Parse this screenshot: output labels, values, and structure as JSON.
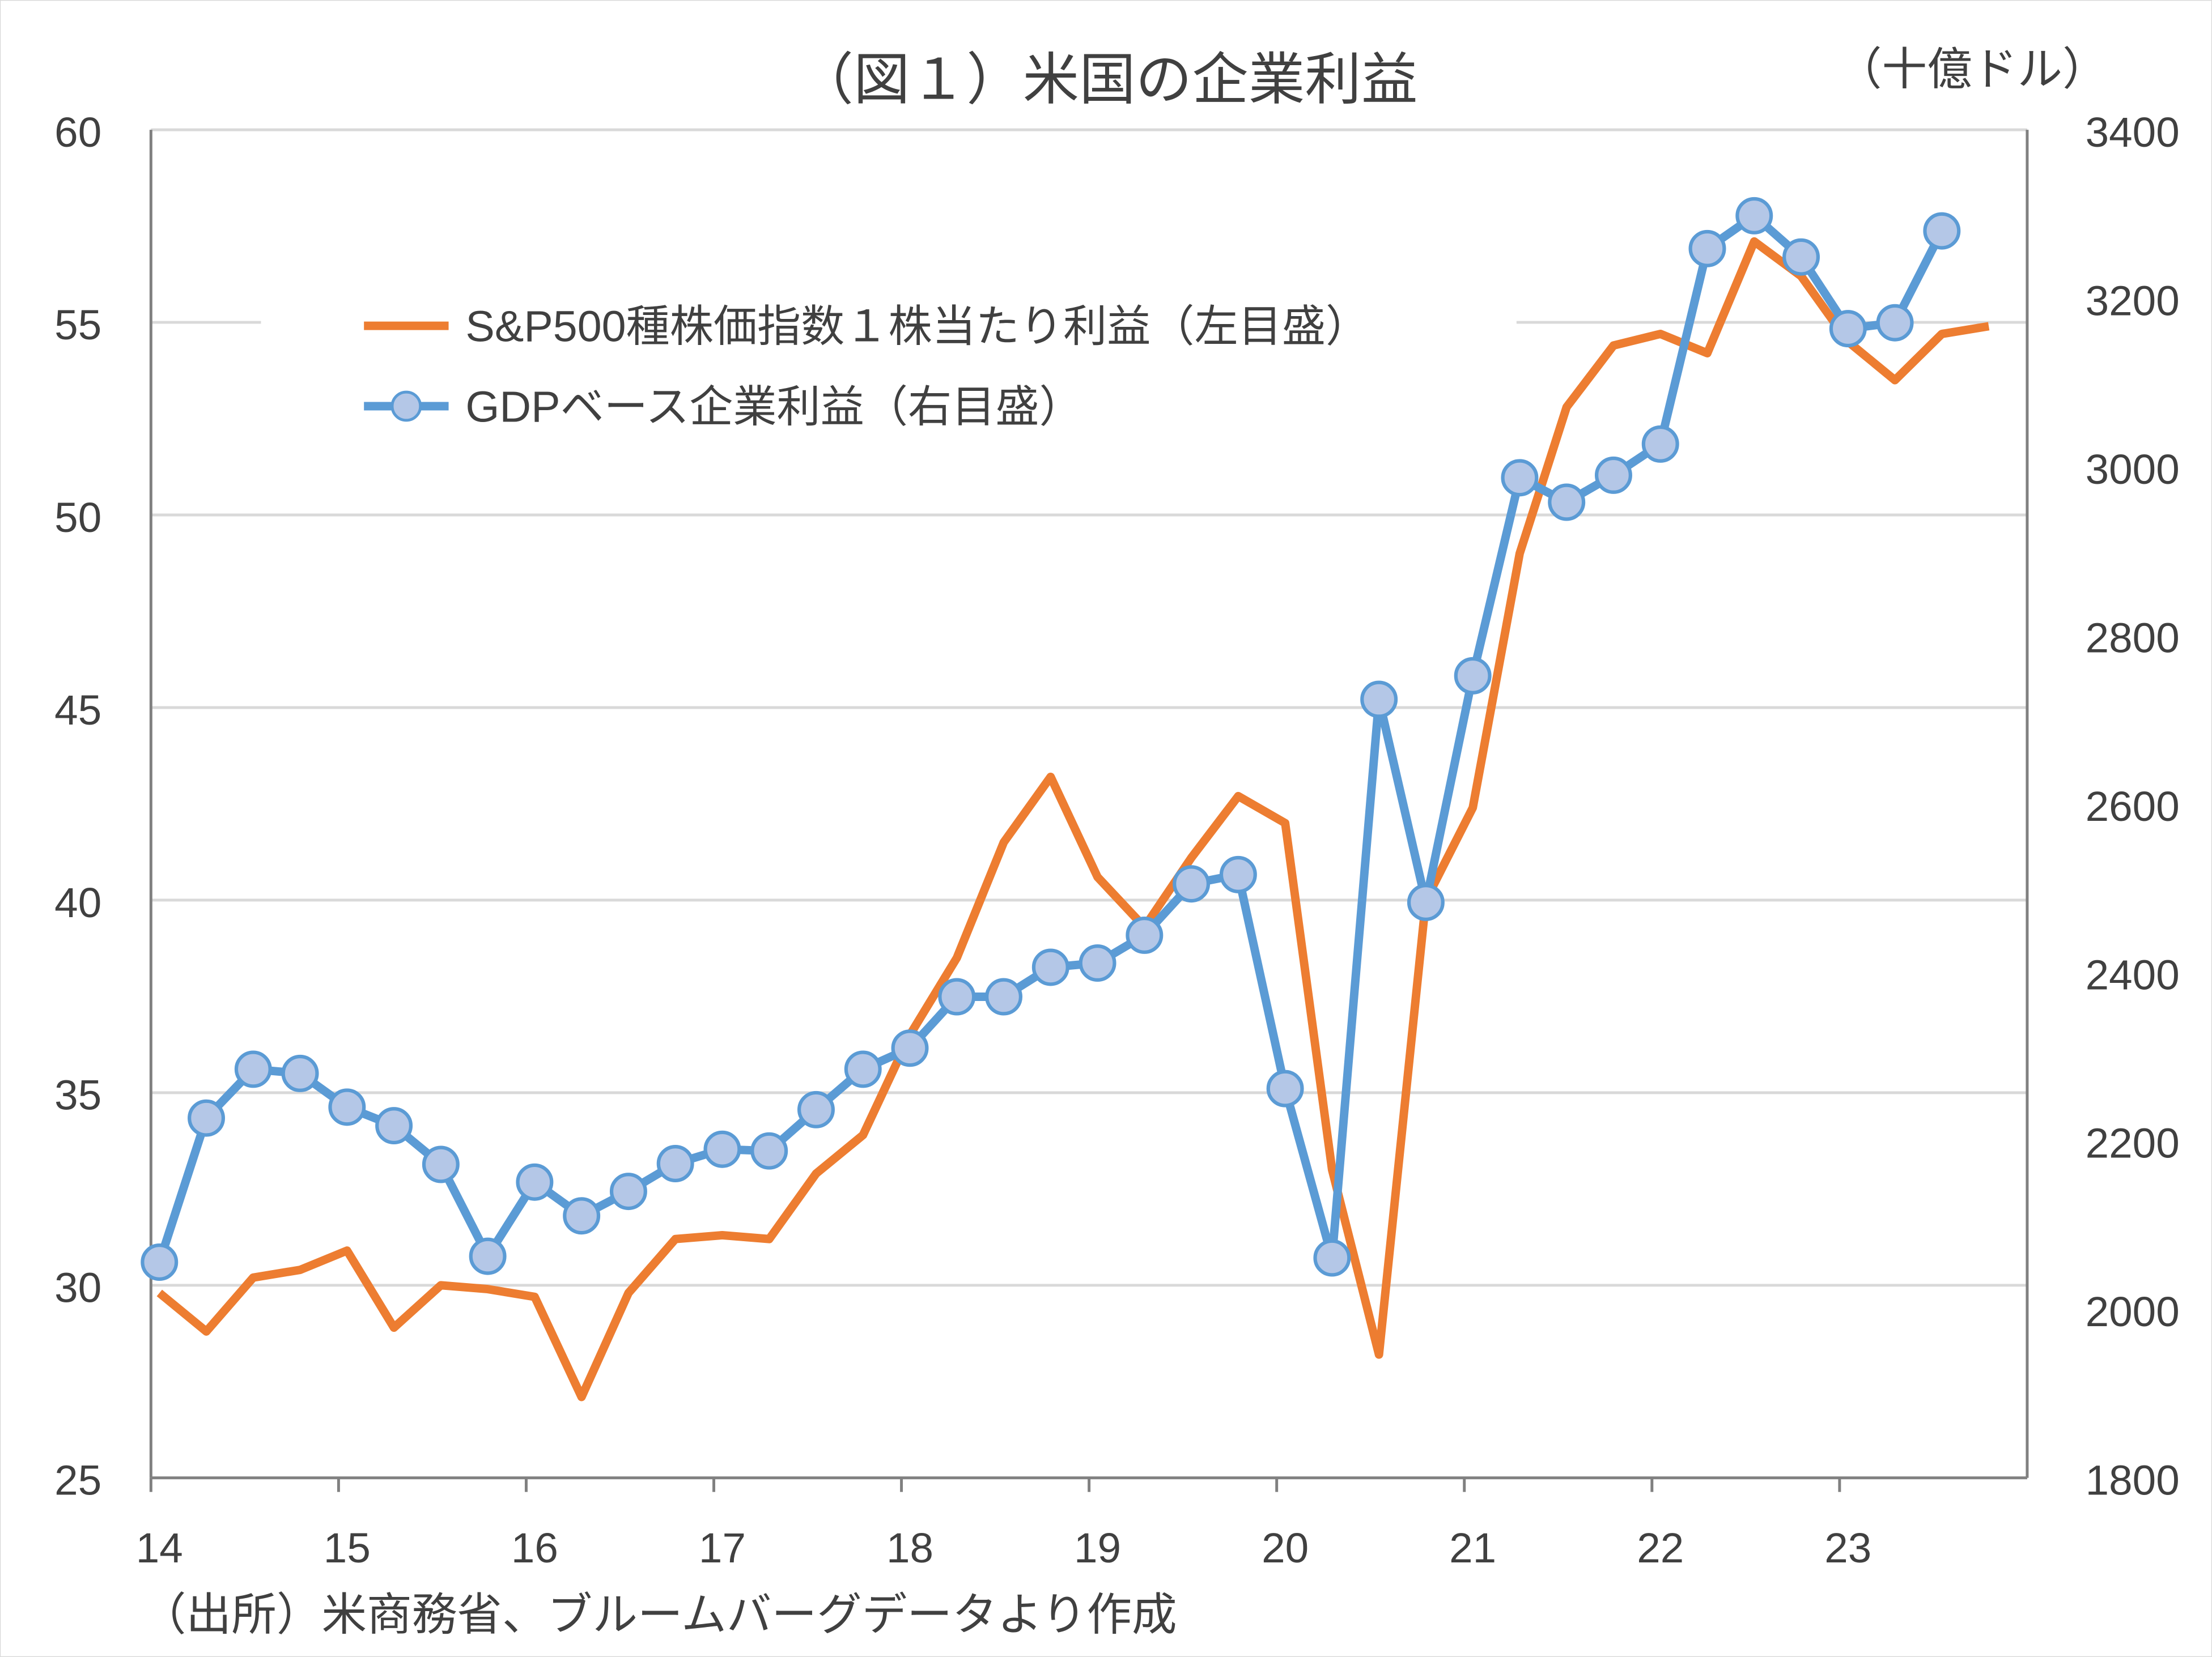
{
  "chart_data": {
    "type": "line",
    "title": "（図１）米国の企業利益",
    "right_unit_label": "（十億ドル）",
    "source_note": "（出所）米商務省、ブルームバーグデータより作成",
    "x_tick_labels": [
      "14",
      "15",
      "16",
      "17",
      "18",
      "19",
      "20",
      "21",
      "22",
      "23"
    ],
    "x_range": [
      "2014Q1",
      "2023Q4"
    ],
    "left_axis": {
      "ylim": [
        25,
        60
      ],
      "ticks": [
        "25",
        "30",
        "35",
        "40",
        "45",
        "50",
        "55",
        "60"
      ]
    },
    "right_axis": {
      "ylim": [
        1800,
        3400
      ],
      "ticks": [
        "1800",
        "2000",
        "2200",
        "2400",
        "2600",
        "2800",
        "3000",
        "3200",
        "3400"
      ]
    },
    "grid": true,
    "legend_placement": "top-left",
    "series": [
      {
        "name": "S&P500種株価指数１株当たり利益（左目盛）",
        "axis": "left",
        "color": "#ED7D31",
        "markers": false,
        "values": [
          29.8,
          28.8,
          30.2,
          30.4,
          30.9,
          28.9,
          30.0,
          29.9,
          29.7,
          27.1,
          29.8,
          31.2,
          31.3,
          31.2,
          32.9,
          33.9,
          36.5,
          38.5,
          41.5,
          43.2,
          40.6,
          39.3,
          41.1,
          42.7,
          42.0,
          33.0,
          28.2,
          40.0,
          42.4,
          49.0,
          52.8,
          54.4,
          54.7,
          54.2,
          57.1,
          56.2,
          54.5,
          53.5,
          54.7,
          54.9
        ]
      },
      {
        "name": "GDPベース企業利益（右目盛）",
        "axis": "right",
        "color": "#5B9BD5",
        "marker_fill": "#B4C7E7",
        "markers": true,
        "values": [
          2056,
          2227,
          2285,
          2280,
          2240,
          2218,
          2172,
          2063,
          2151,
          2111,
          2140,
          2173,
          2190,
          2188,
          2237,
          2285,
          2310,
          2371,
          2371,
          2406,
          2411,
          2444,
          2505,
          2516,
          2262,
          2061,
          2724,
          2483,
          2752,
          2987,
          2958,
          2990,
          3027,
          3259,
          3298,
          3249,
          3164,
          3171,
          3280
        ]
      }
    ]
  }
}
